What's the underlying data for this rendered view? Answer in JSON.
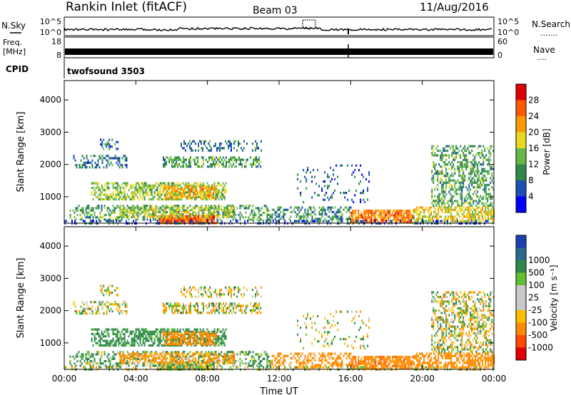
{
  "header": {
    "station": "Rankin Inlet (fitACF)",
    "beam": "Beam 03",
    "date": "11/Aug/2016"
  },
  "panel_labels": {
    "nsky": "N.Sky",
    "freq": "Freq.",
    "freq_unit": "[MHz]",
    "cpid": "CPID",
    "nsearch": "N.Search",
    "nsearch_dots": ".......",
    "nave": "Nave",
    "nave_dots": "...."
  },
  "noise_panel": {
    "left_ticks": [
      "10^5",
      "10^0"
    ],
    "right_ticks": [
      "10^5",
      "10^0"
    ]
  },
  "freq_panel": {
    "left_ticks": [
      "18",
      "8"
    ],
    "right_ticks": [
      "60",
      "0"
    ]
  },
  "cpid_text": "twofsound 3503",
  "colors": {
    "power_scale": [
      "#0000ff",
      "#1e4fb4",
      "#2f8a4a",
      "#66b84a",
      "#e8d820",
      "#ff9a00",
      "#ff5a00",
      "#e00000"
    ],
    "velocity_scale": [
      "#e00000",
      "#ff4a00",
      "#ff8c00",
      "#ffbf00",
      "#c8c8c8",
      "#c8c8c8",
      "#60c030",
      "#2f8a4a",
      "#2a6a8c",
      "#1e3fb4"
    ]
  },
  "chart_data": [
    {
      "type": "heatmap",
      "title": "",
      "xlabel": "",
      "ylabel": "Slant Range [km]",
      "x_ticks": [
        "00:00",
        "04:00",
        "08:00",
        "12:00",
        "16:00",
        "20:00",
        "00:00"
      ],
      "y_ticks": [
        1000,
        2000,
        3000,
        4000
      ],
      "ylim": [
        180,
        4600
      ],
      "xlim_hours": [
        0,
        24
      ],
      "colorbar": {
        "label": "Power [dB]",
        "ticks": [
          4,
          8,
          12,
          16,
          20,
          24,
          28
        ],
        "range": [
          0,
          32
        ]
      },
      "regions": [
        {
          "t": [
            0.3,
            11.5
          ],
          "r": [
            300,
            750
          ],
          "v": 12,
          "d": 0.42
        },
        {
          "t": [
            5.3,
            8.5
          ],
          "r": [
            200,
            430
          ],
          "v": 26,
          "d": 0.9
        },
        {
          "t": [
            3.0,
            9.5
          ],
          "r": [
            380,
            700
          ],
          "v": 16,
          "d": 0.6
        },
        {
          "t": [
            1.5,
            9.0
          ],
          "r": [
            900,
            1450
          ],
          "v": 15,
          "d": 0.6
        },
        {
          "t": [
            5.5,
            8.5
          ],
          "r": [
            950,
            1350
          ],
          "v": 20,
          "d": 0.7
        },
        {
          "t": [
            0.5,
            3.5
          ],
          "r": [
            1900,
            2300
          ],
          "v": 8,
          "d": 0.4
        },
        {
          "t": [
            2.0,
            3.0
          ],
          "r": [
            2500,
            2800
          ],
          "v": 8,
          "d": 0.35
        },
        {
          "t": [
            5.5,
            11.0
          ],
          "r": [
            1900,
            2250
          ],
          "v": 12,
          "d": 0.5
        },
        {
          "t": [
            6.5,
            11.0
          ],
          "r": [
            2450,
            2750
          ],
          "v": 8,
          "d": 0.3
        },
        {
          "t": [
            11.5,
            16.0
          ],
          "r": [
            250,
            700
          ],
          "v": 10,
          "d": 0.45
        },
        {
          "t": [
            16.0,
            19.5
          ],
          "r": [
            220,
            600
          ],
          "v": 24,
          "d": 0.85
        },
        {
          "t": [
            19.5,
            24.0
          ],
          "r": [
            250,
            700
          ],
          "v": 18,
          "d": 0.6
        },
        {
          "t": [
            20.5,
            24.0
          ],
          "r": [
            700,
            2600
          ],
          "v": 12,
          "d": 0.45
        },
        {
          "t": [
            13.0,
            17.0
          ],
          "r": [
            800,
            2000
          ],
          "v": 7,
          "d": 0.12
        },
        {
          "t": [
            0.0,
            24.0
          ],
          "r": [
            200,
            280
          ],
          "v": 6,
          "d": 0.3
        }
      ]
    },
    {
      "type": "heatmap",
      "title": "",
      "xlabel": "Time UT",
      "ylabel": "Slant Range [km]",
      "x_ticks": [
        "00:00",
        "04:00",
        "08:00",
        "12:00",
        "16:00",
        "20:00",
        "00:00"
      ],
      "y_ticks": [
        1000,
        2000,
        3000,
        4000
      ],
      "ylim": [
        180,
        4600
      ],
      "xlim_hours": [
        0,
        24
      ],
      "colorbar": {
        "label": "Velocity [m s⁻¹]",
        "ticks": [
          "-1000",
          "-500",
          "-100",
          "-25",
          "25",
          "100",
          "500",
          "1000"
        ]
      },
      "regions": [
        {
          "t": [
            0.3,
            11.5
          ],
          "r": [
            300,
            750
          ],
          "v": 150,
          "d": 0.42
        },
        {
          "t": [
            5.3,
            8.5
          ],
          "r": [
            200,
            430
          ],
          "v": 80,
          "d": 0.9
        },
        {
          "t": [
            3.0,
            9.5
          ],
          "r": [
            380,
            700
          ],
          "v": -200,
          "d": 0.6
        },
        {
          "t": [
            1.5,
            9.0
          ],
          "r": [
            900,
            1450
          ],
          "v": 250,
          "d": 0.6
        },
        {
          "t": [
            5.5,
            8.5
          ],
          "r": [
            950,
            1350
          ],
          "v": -300,
          "d": 0.7
        },
        {
          "t": [
            0.5,
            3.5
          ],
          "r": [
            1900,
            2300
          ],
          "v": 0,
          "d": 0.4
        },
        {
          "t": [
            2.0,
            3.0
          ],
          "r": [
            2500,
            2800
          ],
          "v": 0,
          "d": 0.35
        },
        {
          "t": [
            5.5,
            11.0
          ],
          "r": [
            1900,
            2250
          ],
          "v": 0,
          "d": 0.5
        },
        {
          "t": [
            6.5,
            11.0
          ],
          "r": [
            2450,
            2750
          ],
          "v": 0,
          "d": 0.3
        },
        {
          "t": [
            11.5,
            16.0
          ],
          "r": [
            250,
            700
          ],
          "v": -300,
          "d": 0.45
        },
        {
          "t": [
            16.0,
            19.5
          ],
          "r": [
            220,
            600
          ],
          "v": -350,
          "d": 0.85
        },
        {
          "t": [
            19.5,
            24.0
          ],
          "r": [
            250,
            700
          ],
          "v": -300,
          "d": 0.6
        },
        {
          "t": [
            20.5,
            24.0
          ],
          "r": [
            700,
            2600
          ],
          "v": 0,
          "d": 0.45
        },
        {
          "t": [
            13.0,
            17.0
          ],
          "r": [
            800,
            2000
          ],
          "v": 0,
          "d": 0.12
        },
        {
          "t": [
            0.0,
            24.0
          ],
          "r": [
            200,
            280
          ],
          "v": 0,
          "d": 0.3
        }
      ]
    }
  ]
}
